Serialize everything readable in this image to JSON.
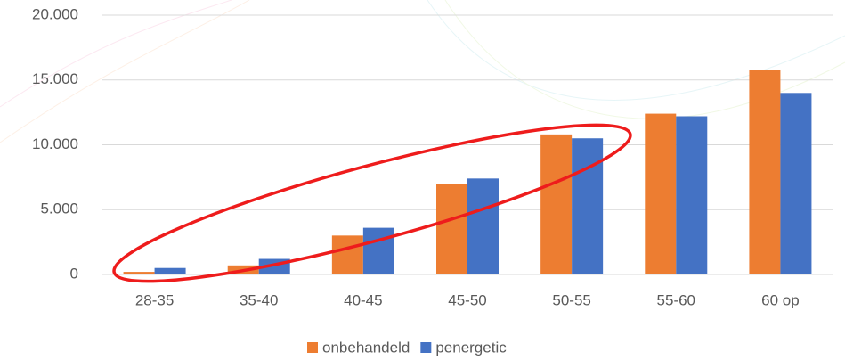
{
  "chart_data": {
    "type": "bar",
    "categories": [
      "28-35",
      "35-40",
      "40-45",
      "45-50",
      "50-55",
      "55-60",
      "60 op"
    ],
    "series": [
      {
        "name": "onbehandeld",
        "color": "#ed7d31",
        "values": [
          200,
          700,
          3000,
          7000,
          10800,
          12400,
          15800
        ]
      },
      {
        "name": "penergetic",
        "color": "#4472c4",
        "values": [
          500,
          1200,
          3600,
          7400,
          10500,
          12200,
          14000
        ]
      }
    ],
    "ylim": [
      0,
      20000
    ],
    "yticks": [
      {
        "value": 0,
        "label": "0"
      },
      {
        "value": 5000,
        "label": "5.000"
      },
      {
        "value": 10000,
        "label": "10.000"
      },
      {
        "value": 15000,
        "label": "15.000"
      },
      {
        "value": 20000,
        "label": "20.000"
      }
    ],
    "grid": true,
    "legend": "bottom"
  }
}
